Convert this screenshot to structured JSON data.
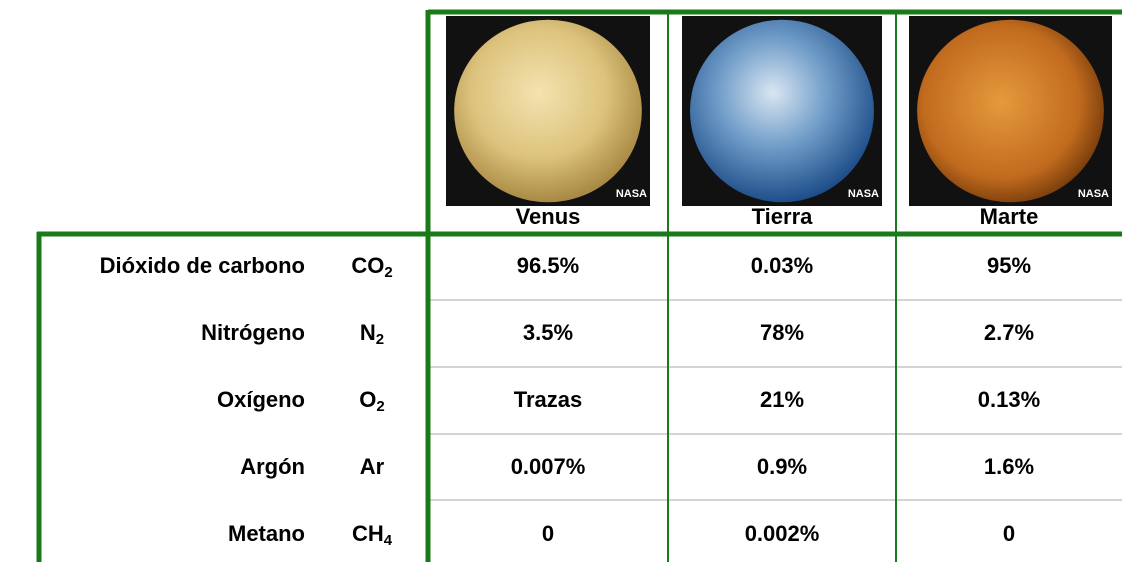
{
  "table": {
    "planets": [
      {
        "name": "Venus",
        "image_credit": "NASA"
      },
      {
        "name": "Tierra",
        "image_credit": "NASA"
      },
      {
        "name": "Marte",
        "image_credit": "NASA"
      }
    ],
    "rows": [
      {
        "name": "Dióxido de carbono",
        "formula": {
          "base": "CO",
          "sub": "2"
        },
        "values": [
          "96.5%",
          "0.03%",
          "95%"
        ]
      },
      {
        "name": "Nitrógeno",
        "formula": {
          "base": "N",
          "sub": "2"
        },
        "values": [
          "3.5%",
          "78%",
          "2.7%"
        ]
      },
      {
        "name": "Oxígeno",
        "formula": {
          "base": "O",
          "sub": "2"
        },
        "values": [
          "Trazas",
          "21%",
          "0.13%"
        ]
      },
      {
        "name": "Argón",
        "formula": {
          "base": "Ar",
          "sub": null
        },
        "values": [
          "0.007%",
          "0.9%",
          "1.6%"
        ]
      },
      {
        "name": "Metano",
        "formula": {
          "base": "CH",
          "sub": "4"
        },
        "values": [
          "0",
          "0.002%",
          "0"
        ]
      }
    ]
  }
}
